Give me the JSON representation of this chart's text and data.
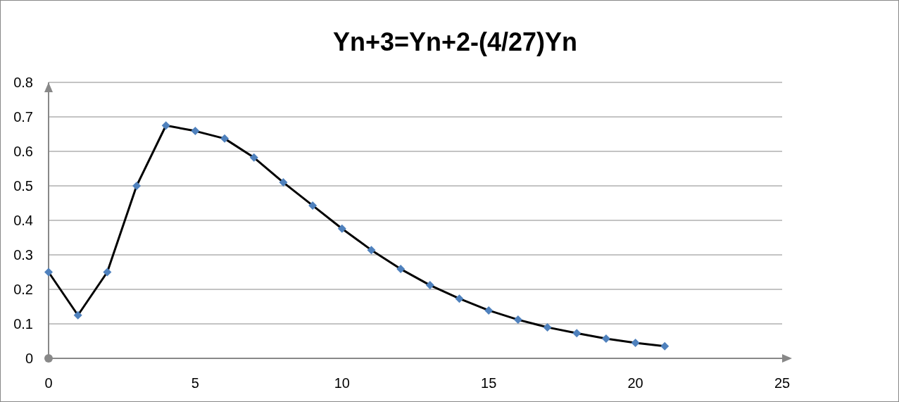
{
  "chart_data": {
    "type": "line",
    "title": "Yn+3=Yn+2-(4/27)Yn",
    "x": [
      0,
      1,
      2,
      3,
      4,
      5,
      6,
      7,
      8,
      9,
      10,
      11,
      12,
      13,
      14,
      15,
      16,
      17,
      18,
      19,
      20,
      21
    ],
    "series": [
      {
        "color": "#000000",
        "values": [
          0.25,
          0.125,
          0.25,
          0.5,
          0.675,
          0.659,
          0.637,
          0.582,
          0.51,
          0.443,
          0.376,
          0.314,
          0.259,
          0.212,
          0.173,
          0.139,
          0.112,
          0.09,
          0.073,
          0.057,
          0.045,
          0.035
        ]
      }
    ],
    "xlim": [
      0,
      25
    ],
    "xticks": [
      0,
      5,
      10,
      15,
      20,
      25
    ],
    "ylim": [
      0,
      0.8
    ],
    "yticks": [
      0,
      0.1,
      0.2,
      0.3,
      0.4,
      0.5,
      0.6,
      0.7,
      0.8
    ],
    "grid": "y",
    "marker": "diamond",
    "line_style": "solid"
  }
}
